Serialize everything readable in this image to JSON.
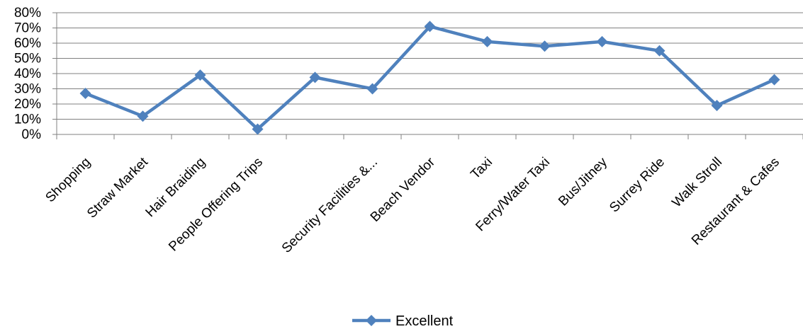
{
  "chart_data": {
    "type": "line",
    "categories": [
      "Shopping",
      "Straw Market",
      "Hair Braiding",
      "People Offering Trips",
      "",
      "Security Facilities &...",
      "Beach Vendor",
      "Taxi",
      "Ferry/Water Taxi",
      "Bus/Jitney",
      "Surrey Ride",
      "Walk Stroll",
      "Restaurant & Cafes"
    ],
    "series": [
      {
        "name": "Excellent",
        "values": [
          0.27,
          0.12,
          0.39,
          0.035,
          0.375,
          0.3,
          0.71,
          0.61,
          0.58,
          0.61,
          0.55,
          0.19,
          0.36
        ],
        "color": "#4F81BD"
      }
    ],
    "yticks": [
      "0%",
      "10%",
      "20%",
      "30%",
      "40%",
      "50%",
      "60%",
      "70%",
      "80%"
    ],
    "ylim": [
      0,
      0.8
    ],
    "grid": true,
    "legend_position": "bottom",
    "marker": "diamond"
  }
}
